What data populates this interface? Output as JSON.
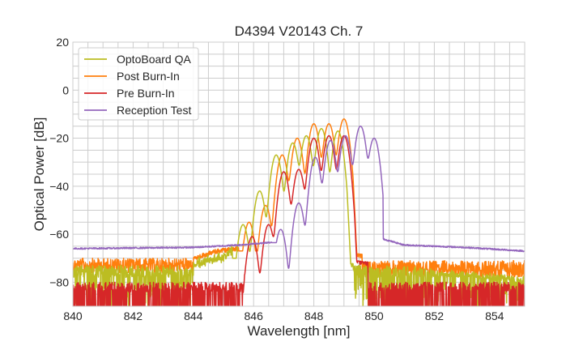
{
  "chart_data": {
    "type": "line",
    "title": "D4394 V20143 Ch. 7",
    "xlabel": "Wavelength [nm]",
    "ylabel": "Optical Power [dB]",
    "xlim": [
      840,
      855
    ],
    "ylim": [
      -90,
      20
    ],
    "xticks": [
      840,
      842,
      844,
      846,
      848,
      850,
      852,
      854
    ],
    "yticks": [
      20,
      0,
      -20,
      -40,
      -60,
      -80
    ],
    "xtick_labels": [
      "840",
      "842",
      "844",
      "846",
      "848",
      "850",
      "852",
      "854"
    ],
    "ytick_labels": [
      "20",
      "0",
      "−20",
      "−40",
      "−60",
      "−80"
    ],
    "grid": true,
    "minor_grid": {
      "x_step": 0.5,
      "y_step": 5
    },
    "legend_position": "top-left",
    "series": [
      {
        "name": "OptoBoard QA",
        "color": "#bcbd22",
        "noise_floor": {
          "mean": -75,
          "spread": 14
        },
        "floor_left_range": [
          840,
          845.3
        ],
        "floor_right_range": [
          849.3,
          855
        ],
        "shoulder_left": [
          [
            844.0,
            -71
          ],
          [
            845.0,
            -68
          ],
          [
            845.4,
            -64
          ]
        ],
        "peaks": [
          {
            "x": 845.65,
            "y": -56
          },
          {
            "x": 846.2,
            "y": -42
          },
          {
            "x": 846.75,
            "y": -27
          },
          {
            "x": 847.3,
            "y": -22
          },
          {
            "x": 847.75,
            "y": -19
          },
          {
            "x": 848.25,
            "y": -16
          },
          {
            "x": 848.8,
            "y": -17
          }
        ],
        "cutoff": {
          "x": 849.1,
          "y_after": -72
        }
      },
      {
        "name": "Post Burn-In",
        "color": "#ff7f0e",
        "noise_floor": {
          "mean": -72,
          "spread": 6
        },
        "floor_left_range": [
          840,
          845.5
        ],
        "floor_right_range": [
          849.6,
          855
        ],
        "shoulder_left": [
          [
            844.0,
            -70
          ],
          [
            844.8,
            -67
          ],
          [
            845.5,
            -66
          ]
        ],
        "peaks": [
          {
            "x": 845.85,
            "y": -55
          },
          {
            "x": 846.4,
            "y": -48
          },
          {
            "x": 846.95,
            "y": -27
          },
          {
            "x": 847.45,
            "y": -20
          },
          {
            "x": 848.0,
            "y": -14
          },
          {
            "x": 848.5,
            "y": -14
          },
          {
            "x": 849.0,
            "y": -12
          }
        ],
        "cutoff": {
          "x": 849.3,
          "y_after": -68
        }
      },
      {
        "name": "Pre Burn-In",
        "color": "#d62728",
        "noise_floor": {
          "mean": -82,
          "spread": 10
        },
        "floor_left_range": [
          840,
          845.7
        ],
        "floor_right_range": [
          849.8,
          855
        ],
        "peaks": [
          {
            "x": 845.95,
            "y": -61
          },
          {
            "x": 846.5,
            "y": -56
          },
          {
            "x": 847.0,
            "y": -34
          },
          {
            "x": 847.5,
            "y": -33
          },
          {
            "x": 848.0,
            "y": -20
          },
          {
            "x": 848.5,
            "y": -19
          },
          {
            "x": 849.0,
            "y": -19
          }
        ],
        "cutoff": {
          "x": 849.35,
          "y_after": -71
        }
      },
      {
        "name": "Reception Test",
        "color": "#9467bd",
        "baseline": [
          [
            840,
            -66
          ],
          [
            844,
            -65.5
          ],
          [
            845.5,
            -64.5
          ],
          [
            846.5,
            -63.5
          ]
        ],
        "peaks": [
          {
            "x": 846.9,
            "y": -58
          },
          {
            "x": 847.5,
            "y": -47
          },
          {
            "x": 848.05,
            "y": -28
          },
          {
            "x": 848.55,
            "y": -21
          },
          {
            "x": 849.05,
            "y": -19
          },
          {
            "x": 849.55,
            "y": -15
          },
          {
            "x": 850.0,
            "y": -20
          }
        ],
        "cutoff": {
          "x": 850.3,
          "y_after": -62
        },
        "tail": [
          [
            850.3,
            -62
          ],
          [
            851,
            -64.5
          ],
          [
            853,
            -65.5
          ],
          [
            855,
            -67
          ]
        ]
      }
    ]
  }
}
